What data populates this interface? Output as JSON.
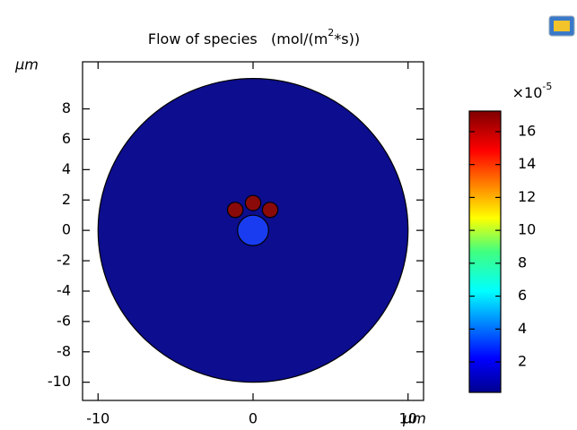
{
  "chart_data": {
    "type": "surface",
    "title": {
      "text": "Flow of species   (mol/(m",
      "superscript": "2",
      "suffix": "*s))"
    },
    "x_unit": "μm",
    "y_unit": "μm",
    "xlim": [
      -11,
      11
    ],
    "ylim": [
      -11.2,
      11.1
    ],
    "xticks": [
      -10,
      0,
      10
    ],
    "yticks": [
      8,
      6,
      4,
      2,
      0,
      -2,
      -4,
      -6,
      -8,
      -10
    ],
    "regions": [
      {
        "x": 0,
        "y": 0,
        "r": 10,
        "color": "#0d0d8f"
      },
      {
        "x": 0,
        "y": 0,
        "r": 1,
        "color": "#1a3cf0"
      },
      {
        "x": -1.15,
        "y": 1.35,
        "r": 0.5,
        "color": "#8a0a0a"
      },
      {
        "x": 0,
        "y": 1.8,
        "r": 0.5,
        "color": "#8a0a0a"
      },
      {
        "x": 1.1,
        "y": 1.35,
        "r": 0.5,
        "color": "#8a0a0a"
      }
    ],
    "colorbar": {
      "multiplier": "×10",
      "exponent": "-5",
      "lim": [
        0.15,
        17.25
      ],
      "ticks": [
        2,
        4,
        6,
        8,
        10,
        12,
        14,
        16
      ]
    }
  }
}
